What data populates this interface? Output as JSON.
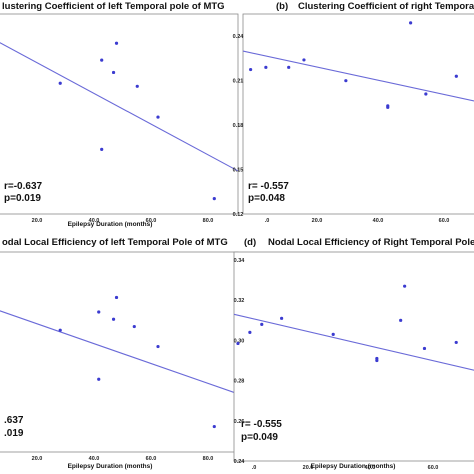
{
  "chart_data": [
    {
      "type": "scatter",
      "title": "lustering Coefficient of left Temporal pole of MTG",
      "panel_label": "",
      "xlabel": "Epilepsy Duration (months)",
      "ylabel": "",
      "x_ticks": [
        "20.0",
        "40.0",
        "60.0",
        "80.0"
      ],
      "y_ticks": [],
      "xlim": [
        0,
        81
      ],
      "ylim": [
        0.12,
        0.25
      ],
      "r_text": "r=-0.637",
      "p_text": "p=0.019",
      "points": [
        {
          "x": 21,
          "y": 0.205
        },
        {
          "x": 35,
          "y": 0.22
        },
        {
          "x": 39,
          "y": 0.212
        },
        {
          "x": 40,
          "y": 0.231
        },
        {
          "x": 47,
          "y": 0.203
        },
        {
          "x": 54,
          "y": 0.183
        },
        {
          "x": 35,
          "y": 0.162
        },
        {
          "x": 73,
          "y": 0.13
        }
      ],
      "fit": {
        "x": [
          0,
          81
        ],
        "y": [
          0.232,
          0.148
        ]
      },
      "colors": {
        "points": "#3b3bd0",
        "fit": "#6a6ad8"
      }
    },
    {
      "type": "scatter",
      "title": "Clustering Coefficient of right Temporal pole o",
      "panel_label": "(b)",
      "xlabel": "",
      "ylabel": "",
      "x_ticks": [
        ".0",
        "20.0",
        "40.0",
        "60.0"
      ],
      "y_ticks": [
        "0.12",
        "0.15",
        "0.18",
        "0.21",
        "0.24"
      ],
      "xlim": [
        0,
        63
      ],
      "ylim": [
        0.12,
        0.255
      ],
      "r_text": "r= -0.557",
      "p_text": "p=0.048",
      "points": [
        {
          "x": 2,
          "y": 0.2175
        },
        {
          "x": 6,
          "y": 0.219
        },
        {
          "x": 12,
          "y": 0.219
        },
        {
          "x": 16,
          "y": 0.224
        },
        {
          "x": 27,
          "y": 0.21
        },
        {
          "x": 38,
          "y": 0.192
        },
        {
          "x": 38,
          "y": 0.193
        },
        {
          "x": 44,
          "y": 0.249
        },
        {
          "x": 48,
          "y": 0.201
        },
        {
          "x": 56,
          "y": 0.213
        }
      ],
      "fit": {
        "x": [
          0,
          63
        ],
        "y": [
          0.23,
          0.195
        ]
      },
      "colors": {
        "points": "#3b3bd0",
        "fit": "#6a6ad8"
      }
    },
    {
      "type": "scatter",
      "title": "odal Local Efficiency of left Temporal Pole of MTG",
      "panel_label": "",
      "xlabel": "Epilepsy Duration (months)",
      "ylabel": "",
      "x_ticks": [
        "20.0",
        "40.0",
        "60.0",
        "80.0"
      ],
      "y_ticks": [],
      "xlim": [
        0,
        81
      ],
      "ylim": [
        0.24,
        0.35
      ],
      "r_text": ".637",
      "p_text": ".019",
      "points": [
        {
          "x": 21,
          "y": 0.307
        },
        {
          "x": 34,
          "y": 0.317
        },
        {
          "x": 39,
          "y": 0.313
        },
        {
          "x": 40,
          "y": 0.325
        },
        {
          "x": 46,
          "y": 0.309
        },
        {
          "x": 54,
          "y": 0.298
        },
        {
          "x": 34,
          "y": 0.28
        },
        {
          "x": 73,
          "y": 0.254
        }
      ],
      "fit": {
        "x": [
          0,
          81
        ],
        "y": [
          0.318,
          0.272
        ]
      },
      "colors": {
        "points": "#3b3bd0",
        "fit": "#6a6ad8"
      }
    },
    {
      "type": "scatter",
      "title": "Nodal Local Efficiency of Right Temporal Pole o",
      "panel_label": "(d)",
      "xlabel": "Epilepsy Duration (months)",
      "ylabel": "",
      "x_ticks": [
        ".0",
        "20.0",
        "40.0",
        "60.0"
      ],
      "y_ticks": [
        "0.24",
        "0.26",
        "0.28",
        "0.30",
        "0.32",
        "0.34"
      ],
      "xlim": [
        0,
        63
      ],
      "ylim": [
        0.24,
        0.344
      ],
      "r_text": "r= -0.555",
      "p_text": "p=0.049",
      "points": [
        {
          "x": 1,
          "y": 0.2985
        },
        {
          "x": 4,
          "y": 0.304
        },
        {
          "x": 7,
          "y": 0.308
        },
        {
          "x": 12,
          "y": 0.311
        },
        {
          "x": 25,
          "y": 0.303
        },
        {
          "x": 36,
          "y": 0.29
        },
        {
          "x": 36,
          "y": 0.291
        },
        {
          "x": 42,
          "y": 0.31
        },
        {
          "x": 43,
          "y": 0.327
        },
        {
          "x": 48,
          "y": 0.296
        },
        {
          "x": 56,
          "y": 0.299
        }
      ],
      "fit": {
        "x": [
          0,
          63
        ],
        "y": [
          0.313,
          0.284
        ]
      },
      "colors": {
        "points": "#3b3bd0",
        "fit": "#6a6ad8"
      }
    }
  ]
}
